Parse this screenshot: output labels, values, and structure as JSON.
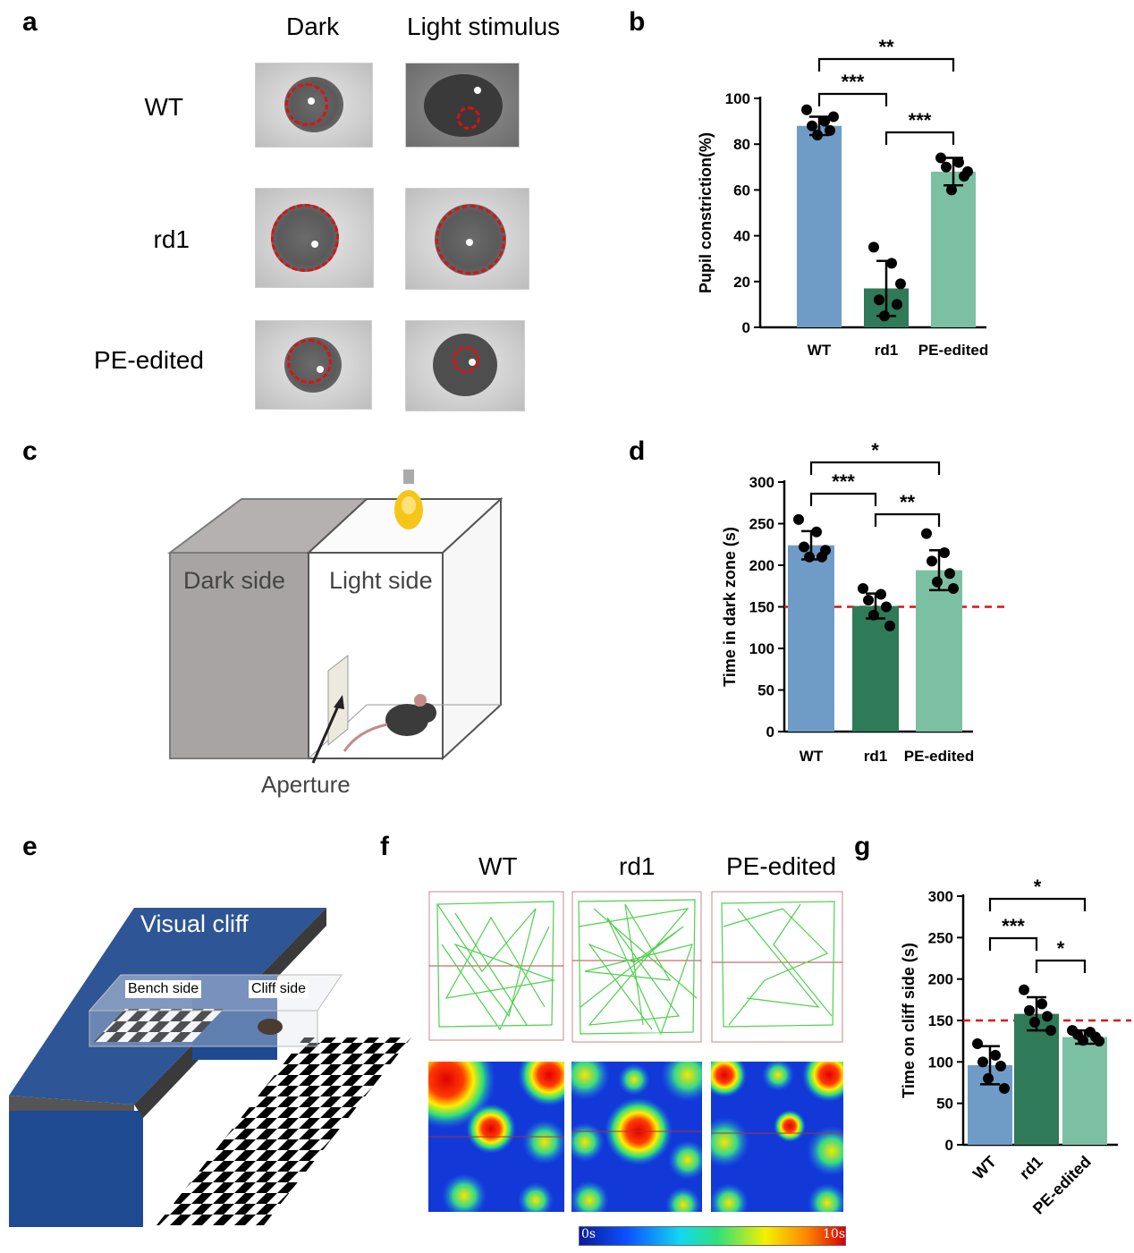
{
  "panel_letters": {
    "a": "a",
    "b": "b",
    "c": "c",
    "d": "d",
    "e": "e",
    "f": "f",
    "g": "g"
  },
  "panel_a": {
    "columns": [
      "Dark",
      "Light stimulus"
    ],
    "rows": [
      "WT",
      "rd1",
      "PE-edited"
    ]
  },
  "panel_c": {
    "dark_label": "Dark side",
    "light_label": "Light side",
    "aperture_label": "Aperture"
  },
  "panel_e": {
    "title": "Visual cliff",
    "bench_label": "Bench side",
    "cliff_label": "Cliff side"
  },
  "panel_f": {
    "columns": [
      "WT",
      "rd1",
      "PE-edited"
    ],
    "scale_min": "0s",
    "scale_max": "10s"
  },
  "colors": {
    "wt": "#6f9cc7",
    "rd1": "#2f7a58",
    "pe": "#7cc0a3",
    "ref_line": "#e01010"
  },
  "chart_data": [
    {
      "id": "b",
      "type": "bar",
      "categories": [
        "WT",
        "rd1",
        "PE-edited"
      ],
      "values": [
        88,
        17,
        68
      ],
      "errors": [
        4,
        12,
        6
      ],
      "points": [
        [
          95,
          90,
          88,
          86,
          84,
          92
        ],
        [
          35,
          28,
          12,
          10,
          5,
          19
        ],
        [
          74,
          72,
          70,
          66,
          60,
          68
        ]
      ],
      "ylabel": "Pupil constriction(%)",
      "ylim": [
        0,
        100
      ],
      "yticks": [
        0,
        20,
        40,
        60,
        80,
        100
      ],
      "significance": [
        {
          "pair": [
            "WT",
            "rd1"
          ],
          "label": "***"
        },
        {
          "pair": [
            "rd1",
            "PE-edited"
          ],
          "label": "***"
        },
        {
          "pair": [
            "WT",
            "PE-edited"
          ],
          "label": "**"
        }
      ]
    },
    {
      "id": "d",
      "type": "bar",
      "categories": [
        "WT",
        "rd1",
        "PE-edited"
      ],
      "values": [
        224,
        151,
        194
      ],
      "errors": [
        17,
        15,
        24
      ],
      "points": [
        [
          255,
          240,
          222,
          210,
          210,
          218
        ],
        [
          172,
          165,
          158,
          150,
          140,
          127
        ],
        [
          238,
          215,
          205,
          190,
          180,
          172
        ]
      ],
      "ylabel": "Time in dark zone (s)",
      "ylim": [
        0,
        300
      ],
      "yticks": [
        0,
        50,
        100,
        150,
        200,
        250,
        300
      ],
      "reference_line": 150,
      "significance": [
        {
          "pair": [
            "WT",
            "rd1"
          ],
          "label": "***"
        },
        {
          "pair": [
            "rd1",
            "PE-edited"
          ],
          "label": "**"
        },
        {
          "pair": [
            "WT",
            "PE-edited"
          ],
          "label": "*"
        }
      ]
    },
    {
      "id": "g",
      "type": "bar",
      "categories": [
        "WT",
        "rd1",
        "PE-edited"
      ],
      "values": [
        96,
        158,
        130
      ],
      "errors": [
        23,
        20,
        8
      ],
      "points": [
        [
          122,
          108,
          100,
          95,
          80,
          68
        ],
        [
          187,
          170,
          162,
          155,
          148,
          138
        ],
        [
          138,
          136,
          133,
          130,
          126,
          125
        ]
      ],
      "ylabel": "Time on cliff side (s)",
      "ylim": [
        0,
        300
      ],
      "yticks": [
        0,
        50,
        100,
        150,
        200,
        250,
        300
      ],
      "reference_line": 150,
      "rotated_xticks": true,
      "significance": [
        {
          "pair": [
            "WT",
            "rd1"
          ],
          "label": "***"
        },
        {
          "pair": [
            "rd1",
            "PE-edited"
          ],
          "label": "*"
        },
        {
          "pair": [
            "WT",
            "PE-edited"
          ],
          "label": "*"
        }
      ]
    }
  ]
}
